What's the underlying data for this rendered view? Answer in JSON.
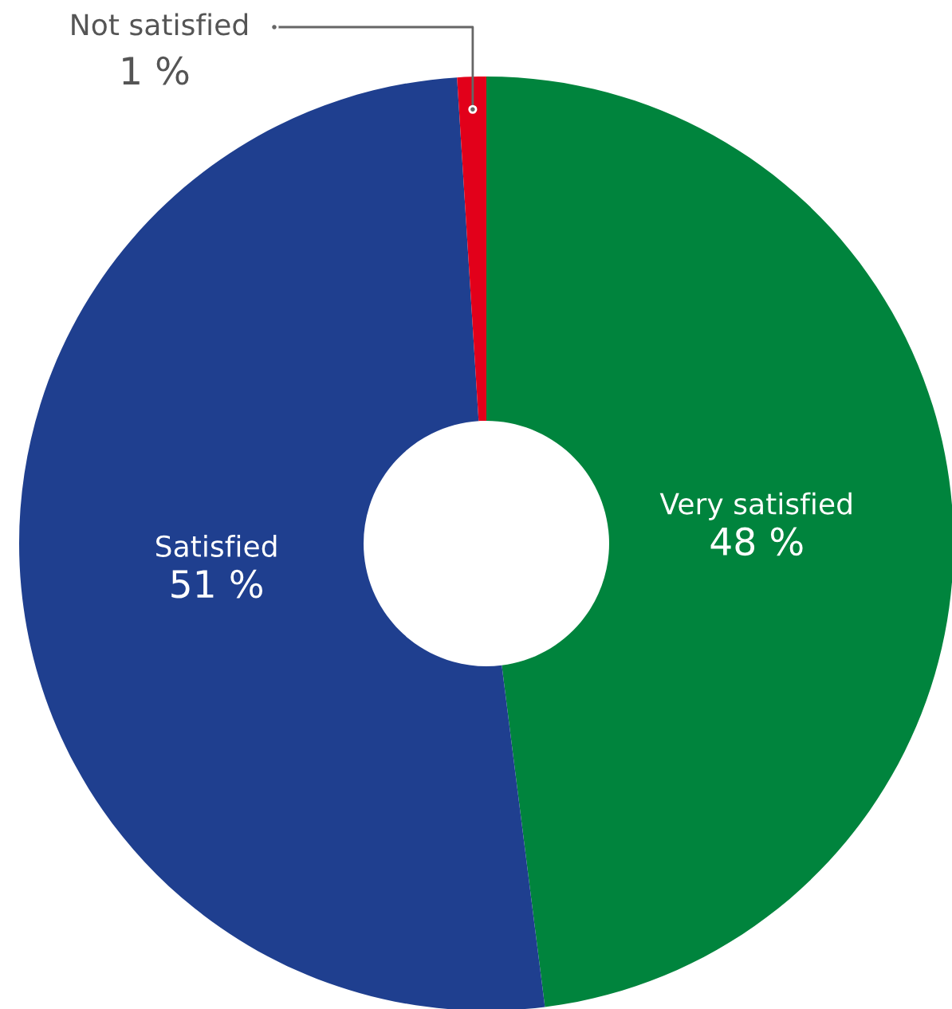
{
  "chart_data": {
    "type": "donut",
    "categories": [
      "Very satisfied",
      "Satisfied",
      "Not satisfied"
    ],
    "values": [
      48,
      51,
      1
    ],
    "value_labels": [
      "48 %",
      "51 %",
      "1 %"
    ],
    "colors": [
      "#00843d",
      "#1f3f8f",
      "#e2001a"
    ],
    "legend": false
  }
}
